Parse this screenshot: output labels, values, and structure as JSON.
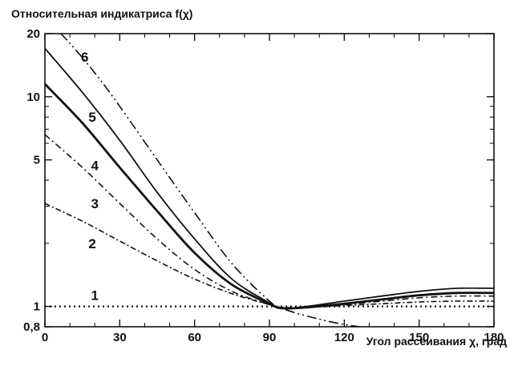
{
  "chart_data": {
    "type": "line",
    "ylabel": "Относительная индикатриса f(χ)",
    "xlabel": "Угол рассеивания χ, град",
    "xlim": [
      0,
      180
    ],
    "ylim": [
      0.8,
      20
    ],
    "yscale": "log",
    "grid": false,
    "x_ticks": [
      0,
      30,
      60,
      90,
      120,
      150,
      180
    ],
    "x_tick_labels": [
      "0",
      "30",
      "60",
      "90",
      "120",
      "150",
      "180"
    ],
    "y_ticks": [
      0.8,
      1,
      5,
      10,
      20
    ],
    "y_tick_labels": [
      "0,8",
      "1",
      "5",
      "10",
      "20"
    ],
    "series": [
      {
        "name": "1",
        "dash": "2,4",
        "width": 2.2,
        "x": [
          0,
          15,
          30,
          45,
          60,
          75,
          90,
          105,
          120,
          135,
          150,
          165,
          180
        ],
        "y": [
          1.0,
          1.0,
          1.0,
          1.0,
          1.0,
          1.0,
          1.0,
          1.0,
          1.0,
          1.0,
          1.0,
          1.0,
          1.0
        ]
      },
      {
        "name": "2",
        "dash": "7,3,2,3",
        "width": 1.6,
        "x": [
          0,
          15,
          30,
          45,
          60,
          75,
          90,
          95,
          105,
          120,
          135,
          150,
          165,
          180
        ],
        "y": [
          3.1,
          2.55,
          2.05,
          1.65,
          1.35,
          1.15,
          1.02,
          0.99,
          0.99,
          1.01,
          1.03,
          1.05,
          1.06,
          1.06
        ]
      },
      {
        "name": "3",
        "dash": "8,4,2,4",
        "width": 1.6,
        "x": [
          0,
          15,
          30,
          45,
          60,
          75,
          90,
          95,
          105,
          120,
          135,
          150,
          165,
          180
        ],
        "y": [
          6.6,
          4.6,
          3.1,
          2.1,
          1.5,
          1.18,
          1.02,
          0.98,
          0.99,
          1.02,
          1.06,
          1.1,
          1.12,
          1.12
        ]
      },
      {
        "name": "4",
        "dash": "",
        "width": 2.8,
        "x": [
          0,
          15,
          30,
          45,
          60,
          75,
          90,
          95,
          105,
          120,
          135,
          150,
          165,
          180
        ],
        "y": [
          11.5,
          7.5,
          4.6,
          2.85,
          1.8,
          1.27,
          1.03,
          0.98,
          0.99,
          1.03,
          1.08,
          1.13,
          1.16,
          1.16
        ]
      },
      {
        "name": "5",
        "dash": "",
        "width": 1.8,
        "x": [
          0,
          15,
          30,
          45,
          60,
          75,
          90,
          95,
          105,
          120,
          135,
          150,
          165,
          180
        ],
        "y": [
          17,
          10.5,
          6.2,
          3.5,
          2.1,
          1.35,
          1.04,
          0.98,
          1.0,
          1.06,
          1.12,
          1.18,
          1.22,
          1.22
        ]
      },
      {
        "name": "6",
        "dash": "12,4,2,4,2,4",
        "width": 1.6,
        "x": [
          0,
          10,
          20,
          30,
          45,
          60,
          75,
          90,
          95,
          105,
          120,
          135,
          150,
          165,
          180
        ],
        "y": [
          24,
          18,
          13,
          9.0,
          5.0,
          2.8,
          1.6,
          1.06,
          0.98,
          0.9,
          0.82,
          0.78,
          0.76,
          0.75,
          0.75
        ]
      }
    ],
    "curve_labels": [
      {
        "text": "1",
        "x": 20,
        "y": 1.13
      },
      {
        "text": "2",
        "x": 19,
        "y": 2.0
      },
      {
        "text": "3",
        "x": 20,
        "y": 3.1
      },
      {
        "text": "4",
        "x": 20,
        "y": 4.7
      },
      {
        "text": "5",
        "x": 19,
        "y": 8.0
      },
      {
        "text": "6",
        "x": 16,
        "y": 15.5
      }
    ]
  }
}
